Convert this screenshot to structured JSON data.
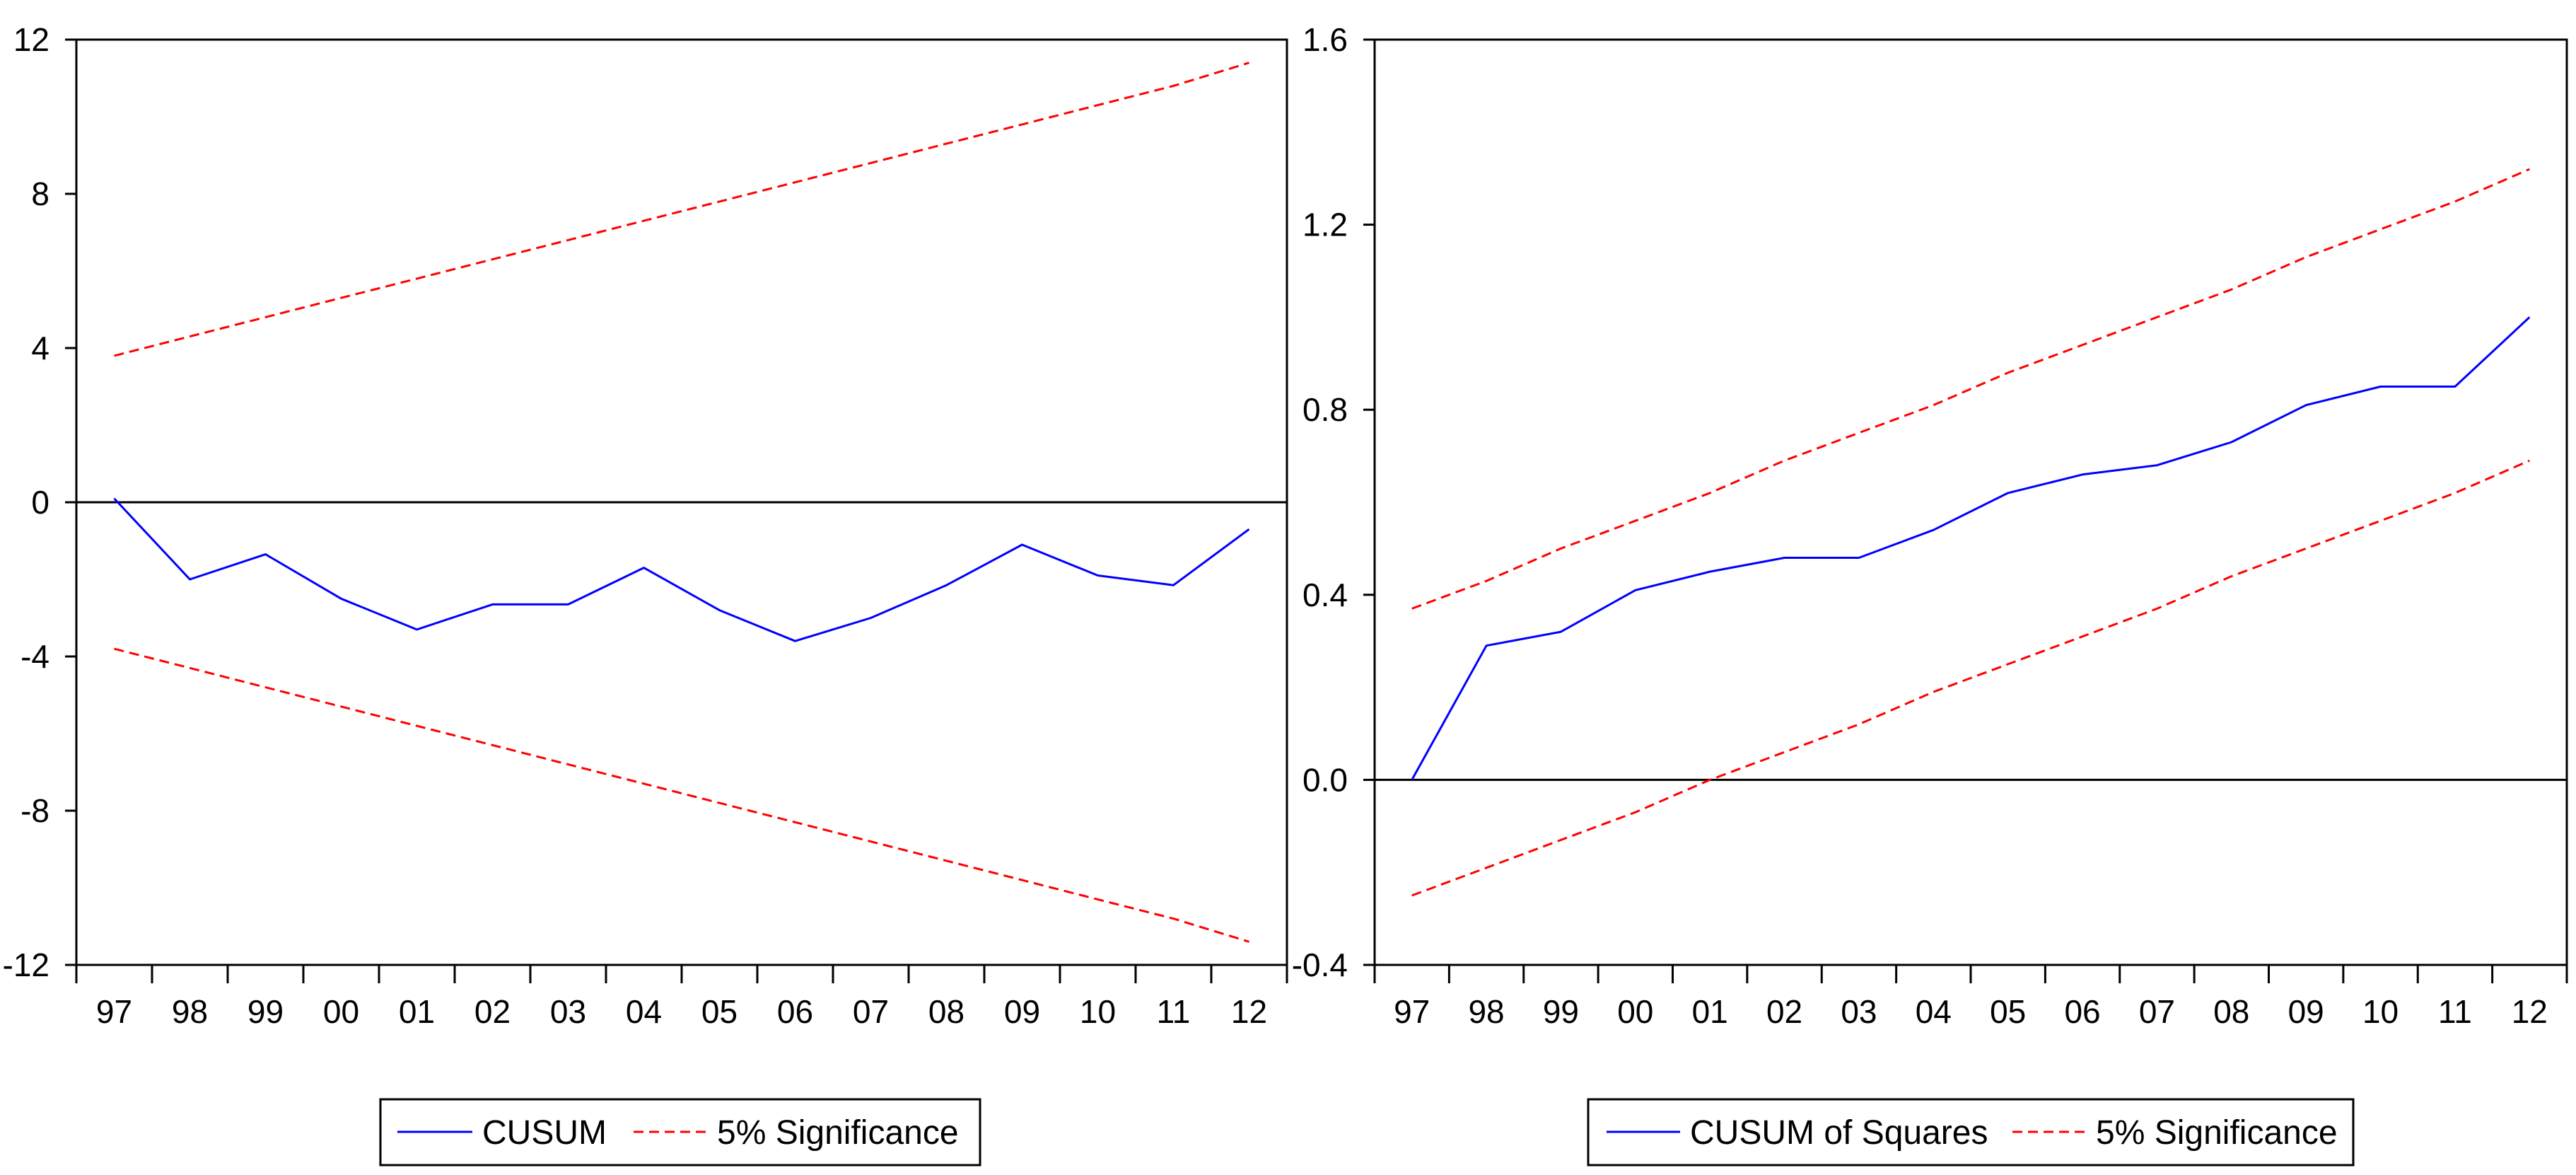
{
  "colors": {
    "series": "#0000ff",
    "significance": "#ff0000",
    "axis": "#000000",
    "background": "#ffffff"
  },
  "chart_data": [
    {
      "type": "line",
      "title": "",
      "xlabel": "",
      "ylabel": "",
      "x": [
        "97",
        "98",
        "99",
        "00",
        "01",
        "02",
        "03",
        "04",
        "05",
        "06",
        "07",
        "08",
        "09",
        "10",
        "11",
        "12"
      ],
      "xlim": [
        -0.5,
        15.5
      ],
      "ylim": [
        -12,
        12
      ],
      "yticks": [
        12,
        8,
        4,
        0,
        -4,
        -8,
        -12
      ],
      "ytick_labels": [
        "12",
        "8",
        "4",
        "0",
        "-4",
        "-8",
        "-12"
      ],
      "zero_line": 0,
      "grid": false,
      "legend_position": "bottom",
      "series": [
        {
          "name": "CUSUM",
          "style": "solid",
          "color": "#0000ff",
          "values": [
            0.1,
            -2.0,
            -1.35,
            -2.5,
            -3.3,
            -2.65,
            -2.65,
            -1.7,
            -2.8,
            -3.6,
            -3.0,
            -2.15,
            -1.1,
            -1.9,
            -2.15,
            -0.7
          ]
        },
        {
          "name": "5% Significance",
          "style": "dashed",
          "color": "#ff0000",
          "values": [
            3.8,
            4.3,
            4.8,
            5.3,
            5.8,
            6.3,
            6.8,
            7.3,
            7.8,
            8.3,
            8.8,
            9.3,
            9.8,
            10.3,
            10.8,
            11.4
          ]
        },
        {
          "name": "5% Significance",
          "style": "dashed",
          "color": "#ff0000",
          "in_legend": false,
          "values": [
            -3.8,
            -4.3,
            -4.8,
            -5.3,
            -5.8,
            -6.3,
            -6.8,
            -7.3,
            -7.8,
            -8.3,
            -8.8,
            -9.3,
            -9.8,
            -10.3,
            -10.8,
            -11.4
          ]
        }
      ],
      "legend": [
        "CUSUM",
        "5% Significance"
      ]
    },
    {
      "type": "line",
      "title": "",
      "xlabel": "",
      "ylabel": "",
      "x": [
        "97",
        "98",
        "99",
        "00",
        "01",
        "02",
        "03",
        "04",
        "05",
        "06",
        "07",
        "08",
        "09",
        "10",
        "11",
        "12"
      ],
      "xlim": [
        -0.5,
        15.5
      ],
      "ylim": [
        -0.4,
        1.6
      ],
      "yticks": [
        1.6,
        1.2,
        0.8,
        0.4,
        0.0,
        -0.4
      ],
      "ytick_labels": [
        "1.6",
        "1.2",
        "0.8",
        "0.4",
        "0.0",
        "-0.4"
      ],
      "zero_line": 0,
      "grid": false,
      "legend_position": "bottom",
      "series": [
        {
          "name": "CUSUM of Squares",
          "style": "solid",
          "color": "#0000ff",
          "values": [
            0.0,
            0.29,
            0.32,
            0.41,
            0.45,
            0.48,
            0.48,
            0.54,
            0.62,
            0.66,
            0.68,
            0.73,
            0.81,
            0.85,
            0.85,
            1.0
          ]
        },
        {
          "name": "5% Significance",
          "style": "dashed",
          "color": "#ff0000",
          "values": [
            0.37,
            0.43,
            0.5,
            0.56,
            0.62,
            0.69,
            0.75,
            0.81,
            0.88,
            0.94,
            1.0,
            1.06,
            1.13,
            1.19,
            1.25,
            1.32
          ]
        },
        {
          "name": "5% Significance",
          "style": "dashed",
          "color": "#ff0000",
          "in_legend": false,
          "values": [
            -0.25,
            -0.19,
            -0.13,
            -0.07,
            0.0,
            0.06,
            0.12,
            0.19,
            0.25,
            0.31,
            0.37,
            0.44,
            0.5,
            0.56,
            0.62,
            0.69
          ]
        }
      ],
      "legend": [
        "CUSUM of Squares",
        "5% Significance"
      ]
    }
  ]
}
